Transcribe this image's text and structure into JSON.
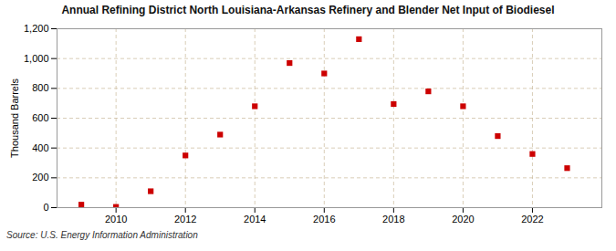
{
  "chart_data": {
    "type": "scatter",
    "title": "Annual Refining District North Louisiana-Arkansas Refinery and Blender Net Input of Biodiesel",
    "ylabel": "Thousand Barrels",
    "annotations": [
      "Source: U.S. Energy Information Administration"
    ],
    "x": [
      2009,
      2010,
      2011,
      2012,
      2013,
      2014,
      2015,
      2016,
      2017,
      2018,
      2019,
      2020,
      2021,
      2022,
      2023
    ],
    "values": [
      20,
      5,
      110,
      350,
      490,
      680,
      970,
      900,
      1130,
      695,
      780,
      680,
      480,
      360,
      265
    ],
    "color": "#cc0000",
    "marker": "square",
    "xlim": [
      2008.3,
      2024.0
    ],
    "xticks": [
      2010,
      2012,
      2014,
      2016,
      2018,
      2020,
      2022
    ],
    "ylim": [
      0,
      1200
    ],
    "yticks": [
      0,
      200,
      400,
      600,
      800,
      {
        "value": 1000,
        "label": "1,000"
      },
      {
        "value": 1200,
        "label": "1,200"
      }
    ],
    "grid": true
  }
}
